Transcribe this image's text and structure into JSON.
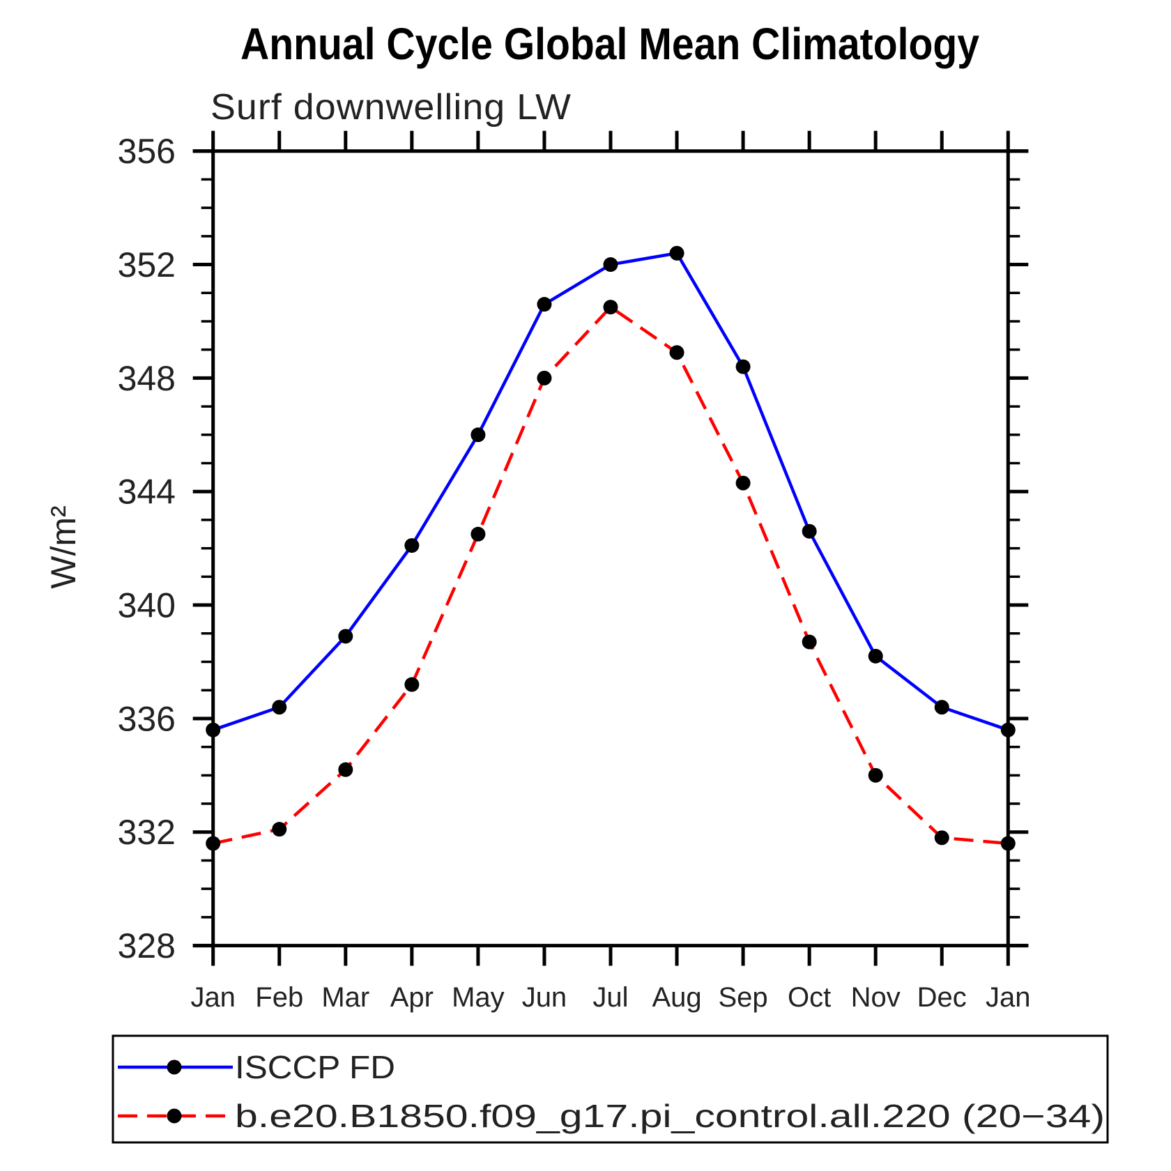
{
  "page": {
    "background": "#ffffff"
  },
  "chart_data": {
    "type": "line",
    "title": "Annual Cycle Global Mean Climatology",
    "subtitle": "Surf downwelling LW",
    "ylabel": "W/m²",
    "x_categories": [
      "Jan",
      "Feb",
      "Mar",
      "Apr",
      "May",
      "Jun",
      "Jul",
      "Aug",
      "Sep",
      "Oct",
      "Nov",
      "Dec",
      "Jan"
    ],
    "ylim": [
      328,
      356
    ],
    "y_major_ticks": [
      356,
      352,
      348,
      344,
      340,
      336,
      332,
      328
    ],
    "y_minor_step": 1,
    "grid": false,
    "legend_position": "bottom",
    "marker_color": "#000000",
    "series": [
      {
        "name": "ISCCP FD",
        "color": "#0000ff",
        "line_style": "solid",
        "marker": "circle",
        "values": [
          335.6,
          336.4,
          338.9,
          342.1,
          346.0,
          350.6,
          352.0,
          352.4,
          348.4,
          342.6,
          338.2,
          336.4,
          335.6
        ]
      },
      {
        "name": "b.e20.B1850.f09_g17.pi_control.all.220 (20−34)",
        "color": "#ff0000",
        "line_style": "dashed",
        "marker": "circle",
        "values": [
          331.6,
          332.1,
          334.2,
          337.2,
          342.5,
          348.0,
          350.5,
          348.9,
          344.3,
          338.7,
          334.0,
          331.8,
          331.6
        ]
      }
    ]
  }
}
